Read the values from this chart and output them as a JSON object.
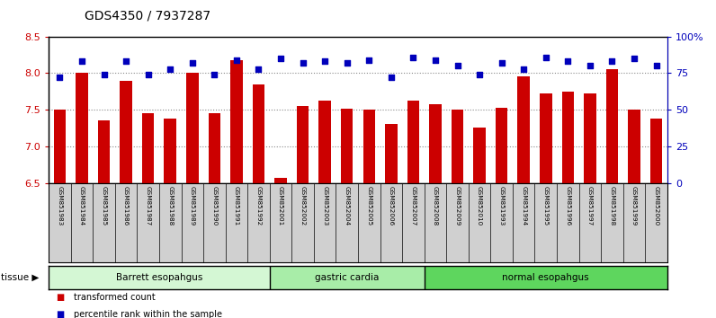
{
  "title": "GDS4350 / 7937287",
  "samples": [
    "GSM851983",
    "GSM851984",
    "GSM851985",
    "GSM851986",
    "GSM851987",
    "GSM851988",
    "GSM851989",
    "GSM851990",
    "GSM851991",
    "GSM851992",
    "GSM852001",
    "GSM852002",
    "GSM852003",
    "GSM852004",
    "GSM852005",
    "GSM852006",
    "GSM852007",
    "GSM852008",
    "GSM852009",
    "GSM852010",
    "GSM851993",
    "GSM851994",
    "GSM851995",
    "GSM851996",
    "GSM851997",
    "GSM851998",
    "GSM851999",
    "GSM852000"
  ],
  "red_values": [
    7.5,
    8.0,
    7.35,
    7.9,
    7.45,
    7.38,
    8.0,
    7.45,
    8.18,
    7.85,
    6.57,
    7.55,
    7.62,
    7.52,
    7.5,
    7.3,
    7.62,
    7.57,
    7.5,
    7.25,
    7.53,
    7.95,
    7.72,
    7.75,
    7.72,
    8.05,
    7.5,
    7.38
  ],
  "blue_values": [
    72,
    83,
    74,
    83,
    74,
    78,
    82,
    74,
    84,
    78,
    85,
    82,
    83,
    82,
    84,
    72,
    86,
    84,
    80,
    74,
    82,
    78,
    86,
    83,
    80,
    83,
    85,
    80
  ],
  "tissue_groups": [
    {
      "label": "Barrett esopahgus",
      "start": 0,
      "end": 10,
      "color": "#d4f7d4"
    },
    {
      "label": "gastric cardia",
      "start": 10,
      "end": 17,
      "color": "#a8eda8"
    },
    {
      "label": "normal esopahgus",
      "start": 17,
      "end": 28,
      "color": "#5ed65e"
    }
  ],
  "ylim_left": [
    6.5,
    8.5
  ],
  "ylim_right": [
    0,
    100
  ],
  "yticks_left": [
    6.5,
    7.0,
    7.5,
    8.0,
    8.5
  ],
  "yticks_right": [
    0,
    25,
    50,
    75,
    100
  ],
  "ytick_labels_right": [
    "0",
    "25",
    "50",
    "75",
    "100%"
  ],
  "bar_color": "#cc0000",
  "dot_color": "#0000bb",
  "grid_color": "#888888",
  "bg_color": "#ffffff",
  "tick_label_area_color": "#d0d0d0",
  "left_axis_color": "#cc0000",
  "right_axis_color": "#0000bb",
  "bar_baseline": 6.5
}
